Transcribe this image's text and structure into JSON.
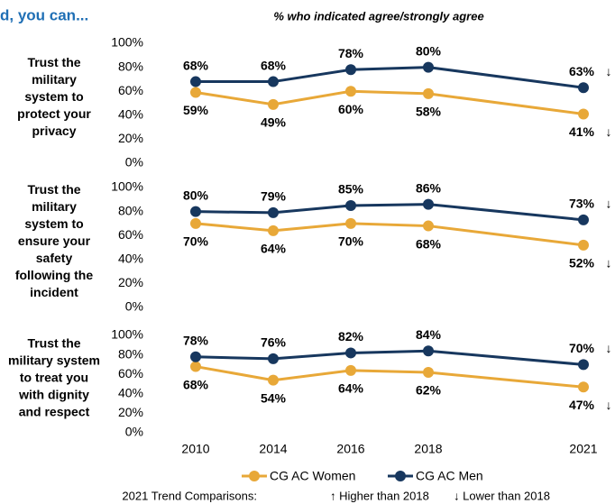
{
  "header": {
    "fragment": "d, you can...",
    "subtitle": "% who indicated agree/strongly agree"
  },
  "chart_data": [
    {
      "type": "line",
      "title_lines": [
        "Trust the",
        "military",
        "system to",
        "protect your",
        "privacy"
      ],
      "categories": [
        "2010",
        "2014",
        "2016",
        "2018",
        "2021"
      ],
      "ylim": [
        0,
        100
      ],
      "yticks": [
        {
          "value": 0,
          "label": "0%"
        },
        {
          "value": 20,
          "label": "20%"
        },
        {
          "value": 40,
          "label": "40%"
        },
        {
          "value": 60,
          "label": "60%"
        },
        {
          "value": 80,
          "label": "80%"
        },
        {
          "value": 100,
          "label": "100%"
        }
      ],
      "series": [
        {
          "name": "CG AC Women",
          "color": "#e8a838",
          "values": [
            59,
            49,
            60,
            58,
            41
          ],
          "value_labels": [
            "59%",
            "49%",
            "60%",
            "58%",
            "41%"
          ],
          "trend_label": "↓"
        },
        {
          "name": "CG AC Men",
          "color": "#17375e",
          "values": [
            68,
            68,
            78,
            80,
            63
          ],
          "value_labels": [
            "68%",
            "68%",
            "78%",
            "80%",
            "63%"
          ],
          "trend_label": "↓"
        }
      ]
    },
    {
      "type": "line",
      "title_lines": [
        "Trust the",
        "military",
        "system to",
        "ensure your",
        "safety",
        "following the",
        "incident"
      ],
      "categories": [
        "2010",
        "2014",
        "2016",
        "2018",
        "2021"
      ],
      "ylim": [
        0,
        100
      ],
      "yticks": [
        {
          "value": 0,
          "label": "0%"
        },
        {
          "value": 20,
          "label": "20%"
        },
        {
          "value": 40,
          "label": "40%"
        },
        {
          "value": 60,
          "label": "60%"
        },
        {
          "value": 80,
          "label": "80%"
        },
        {
          "value": 100,
          "label": "100%"
        }
      ],
      "series": [
        {
          "name": "CG AC Women",
          "color": "#e8a838",
          "values": [
            70,
            64,
            70,
            68,
            52
          ],
          "value_labels": [
            "70%",
            "64%",
            "70%",
            "68%",
            "52%"
          ],
          "trend_label": "↓"
        },
        {
          "name": "CG AC Men",
          "color": "#17375e",
          "values": [
            80,
            79,
            85,
            86,
            73
          ],
          "value_labels": [
            "80%",
            "79%",
            "85%",
            "86%",
            "73%"
          ],
          "trend_label": "↓"
        }
      ]
    },
    {
      "type": "line",
      "title_lines": [
        "Trust the",
        "military system",
        "to treat you",
        "with dignity",
        "and respect"
      ],
      "categories": [
        "2010",
        "2014",
        "2016",
        "2018",
        "2021"
      ],
      "ylim": [
        0,
        100
      ],
      "yticks": [
        {
          "value": 0,
          "label": "0%"
        },
        {
          "value": 20,
          "label": "20%"
        },
        {
          "value": 40,
          "label": "40%"
        },
        {
          "value": 60,
          "label": "60%"
        },
        {
          "value": 80,
          "label": "80%"
        },
        {
          "value": 100,
          "label": "100%"
        }
      ],
      "series": [
        {
          "name": "CG AC Women",
          "color": "#e8a838",
          "values": [
            68,
            54,
            64,
            62,
            47
          ],
          "value_labels": [
            "68%",
            "54%",
            "64%",
            "62%",
            "47%"
          ],
          "trend_label": "↓"
        },
        {
          "name": "CG AC Men",
          "color": "#17375e",
          "values": [
            78,
            76,
            82,
            84,
            70
          ],
          "value_labels": [
            "78%",
            "76%",
            "82%",
            "84%",
            "70%"
          ],
          "trend_label": "↓"
        }
      ]
    }
  ],
  "footnote": {
    "title": "2021 Trend Comparisons:",
    "items": [
      "↑ Higher than 2018",
      "↓ Lower than 2018"
    ]
  }
}
